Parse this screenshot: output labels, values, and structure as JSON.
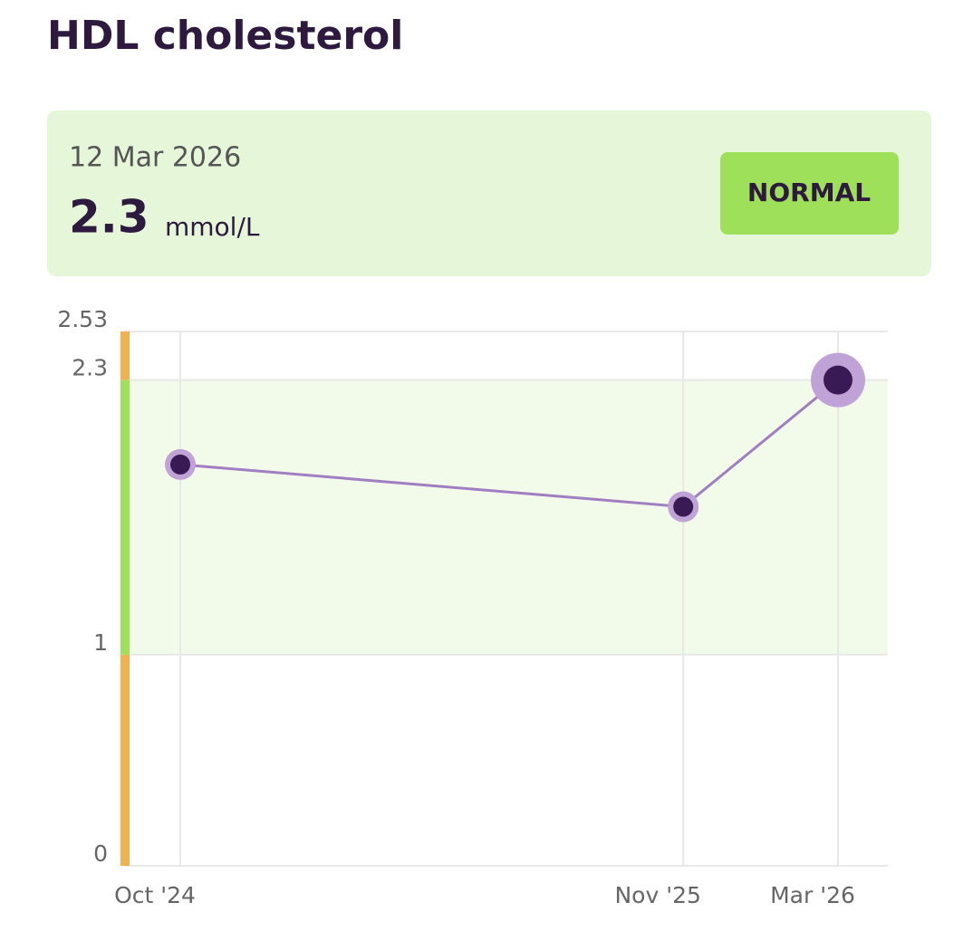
{
  "header": {
    "title": "HDL cholesterol"
  },
  "card": {
    "date": "12 Mar 2026",
    "value": "2.3",
    "unit": "mmol/L",
    "status": "NORMAL"
  },
  "chart_data": {
    "type": "line",
    "x": [
      "2024-10",
      "2025-11",
      "2026-03"
    ],
    "values": [
      1.9,
      1.7,
      2.3
    ],
    "color": "#a07fc0",
    "ylim": [
      0,
      2.53
    ],
    "yticks": [
      0,
      1,
      2.3,
      2.53
    ],
    "xticks": [
      {
        "value": "2024-10",
        "label": "Oct '24"
      },
      {
        "value": "2025-11",
        "label": "Nov '25"
      },
      {
        "value": "2026-03",
        "label": "Mar '26"
      }
    ],
    "normal_range": [
      1,
      2.3
    ],
    "normal_color": "#9ee05a",
    "out_of_range_color": "#f2b150",
    "grid": true
  }
}
